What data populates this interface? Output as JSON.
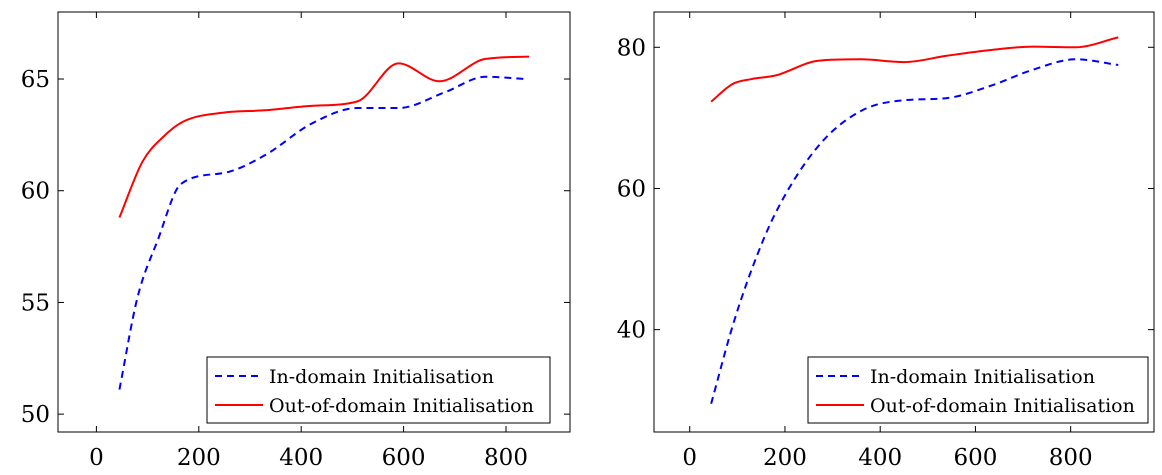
{
  "chart_data": [
    {
      "type": "line",
      "xlim": [
        -75,
        925
      ],
      "ylim": [
        49.2,
        68
      ],
      "xticks": [
        0,
        200,
        400,
        600,
        800
      ],
      "yticks": [
        50,
        55,
        60,
        65
      ],
      "grid": false,
      "legend_position": "bottom-right",
      "series": [
        {
          "name": "In-domain Initialisation",
          "color": "#0000ff",
          "dash": "dashed",
          "x": [
            45,
            80,
            120,
            165,
            250,
            330,
            420,
            510,
            590,
            680,
            760,
            840
          ],
          "y": [
            51.1,
            55.2,
            57.8,
            60.3,
            60.8,
            61.6,
            63.0,
            63.7,
            63.7,
            64.4,
            65.1,
            65.0
          ]
        },
        {
          "name": "Out-of-domain Initialisation",
          "color": "#ff0000",
          "dash": "solid",
          "x": [
            45,
            90,
            130,
            170,
            250,
            330,
            420,
            510,
            590,
            670,
            760,
            845
          ],
          "y": [
            58.8,
            61.3,
            62.4,
            63.1,
            63.5,
            63.6,
            63.8,
            64.0,
            65.7,
            64.9,
            65.9,
            66.0
          ]
        }
      ]
    },
    {
      "type": "line",
      "xlim": [
        -75,
        975
      ],
      "ylim": [
        25.5,
        85
      ],
      "xticks": [
        0,
        200,
        400,
        600,
        800
      ],
      "yticks": [
        40,
        60,
        80
      ],
      "grid": false,
      "legend_position": "bottom-right",
      "series": [
        {
          "name": "In-domain Initialisation",
          "color": "#0000ff",
          "dash": "dashed",
          "x": [
            45,
            90,
            130,
            180,
            270,
            360,
            450,
            540,
            630,
            720,
            810,
            900
          ],
          "y": [
            29.5,
            40.5,
            48.5,
            56.5,
            66.0,
            71.0,
            72.5,
            72.8,
            74.5,
            76.8,
            78.3,
            77.5
          ]
        },
        {
          "name": "Out-of-domain Initialisation",
          "color": "#ff0000",
          "dash": "solid",
          "x": [
            45,
            90,
            130,
            180,
            270,
            360,
            450,
            540,
            630,
            720,
            810,
            900
          ],
          "y": [
            72.3,
            74.8,
            75.5,
            76.0,
            78.1,
            78.3,
            77.9,
            78.8,
            79.6,
            80.1,
            80.0,
            81.4
          ]
        }
      ]
    }
  ]
}
